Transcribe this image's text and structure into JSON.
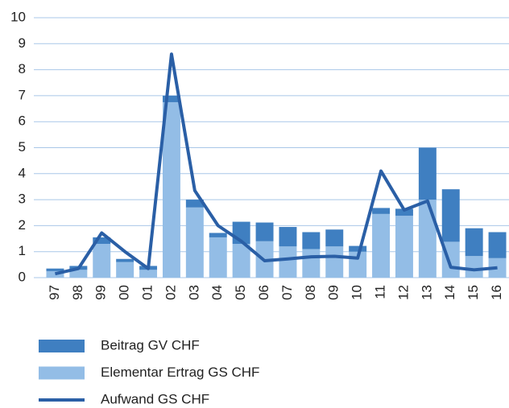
{
  "chart_data": {
    "type": "bar",
    "categories": [
      "97",
      "98",
      "99",
      "00",
      "01",
      "02",
      "03",
      "04",
      "05",
      "06",
      "07",
      "08",
      "09",
      "10",
      "11",
      "12",
      "13",
      "14",
      "15",
      "16"
    ],
    "series": [
      {
        "name": "Beitrag GV CHF",
        "type": "bar",
        "color": "#3f7fc1",
        "values": [
          0.1,
          0.15,
          0.25,
          0.12,
          0.15,
          0.25,
          0.3,
          0.17,
          0.85,
          0.72,
          0.75,
          0.65,
          0.65,
          0.22,
          0.23,
          0.27,
          2.0,
          2.02,
          1.07,
          1.0
        ]
      },
      {
        "name": "Elementar Ertrag GS CHF",
        "type": "bar",
        "color": "#93bde6",
        "values": [
          0.25,
          0.3,
          1.3,
          0.6,
          0.3,
          6.75,
          2.7,
          1.55,
          1.3,
          1.4,
          1.2,
          1.1,
          1.2,
          1.0,
          2.45,
          2.38,
          3.0,
          1.38,
          0.83,
          0.75
        ]
      },
      {
        "name": "Aufwand GS CHF",
        "type": "line",
        "color": "#2a5fa6",
        "values": [
          0.15,
          0.35,
          1.72,
          1.0,
          0.35,
          8.6,
          3.35,
          2.0,
          1.4,
          0.65,
          0.72,
          0.8,
          0.82,
          0.75,
          4.1,
          2.6,
          2.95,
          0.4,
          0.3,
          0.38
        ]
      }
    ],
    "ylim": [
      0,
      10
    ],
    "yticks": [
      0,
      1,
      2,
      3,
      4,
      5,
      6,
      7,
      8,
      9,
      10
    ],
    "grid": true,
    "stacked": true
  }
}
